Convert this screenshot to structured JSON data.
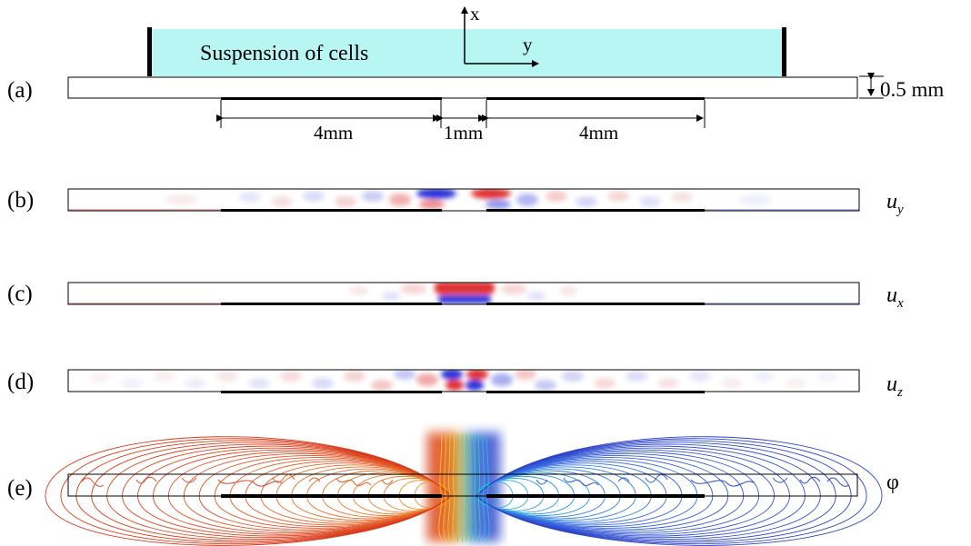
{
  "panels": {
    "a": {
      "label": "(a)",
      "fluid_label": "Suspension of cells",
      "axis_x": "x",
      "axis_y": "y",
      "thickness": "0.5 mm",
      "dim_left": "4mm",
      "dim_gap": "1mm",
      "dim_right": "4mm"
    },
    "b": {
      "label": "(b)",
      "field_base": "u",
      "field_sub": "y"
    },
    "c": {
      "label": "(c)",
      "field_base": "u",
      "field_sub": "x"
    },
    "d": {
      "label": "(d)",
      "field_base": "u",
      "field_sub": "z"
    },
    "e": {
      "label": "(e)",
      "field": "φ"
    }
  },
  "colors": {
    "fluid": "#b8f6f4",
    "positive": "#e03030",
    "negative": "#2b35d8",
    "electrode": "#000000"
  }
}
